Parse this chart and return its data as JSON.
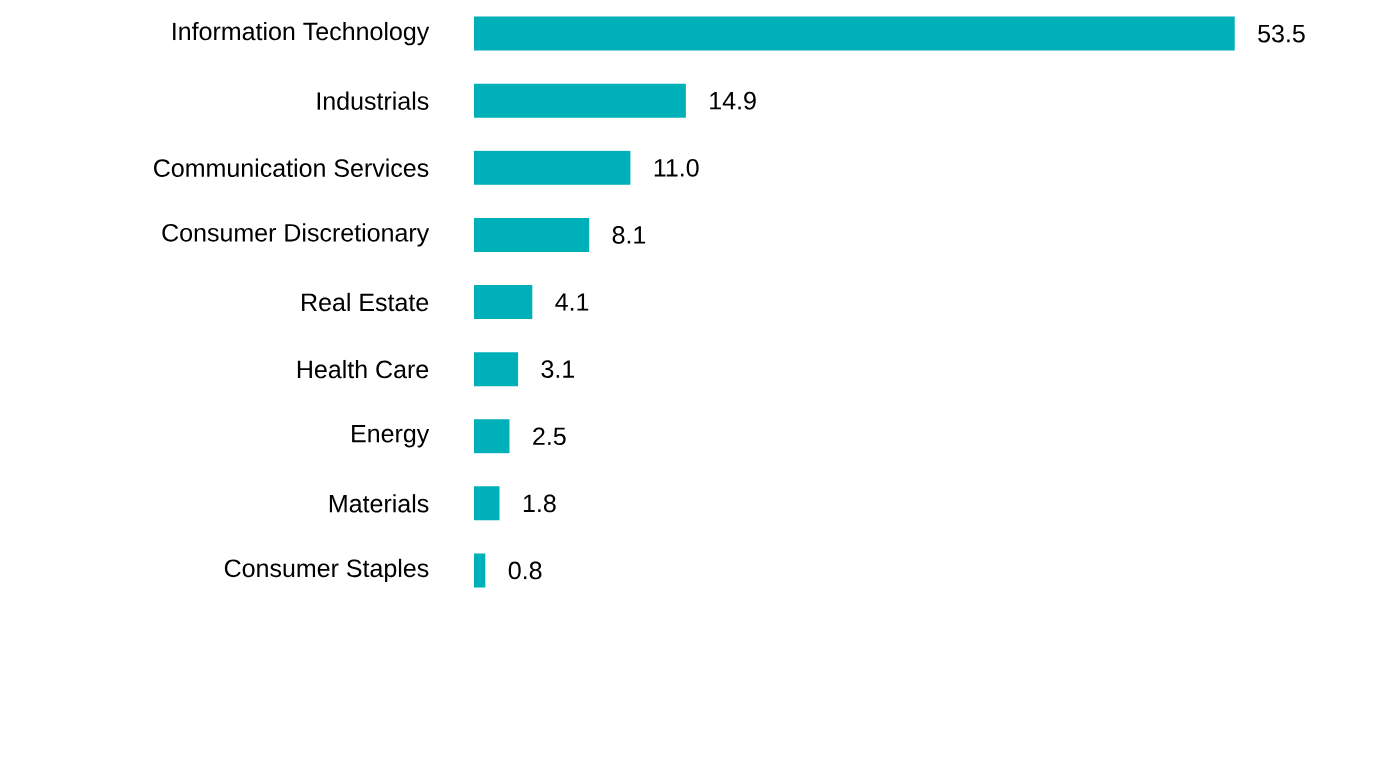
{
  "chart_data": {
    "type": "bar",
    "orientation": "horizontal",
    "categories": [
      "Information Technology",
      "Industrials",
      "Communication Services",
      "Consumer Discretionary",
      "Real Estate",
      "Health Care",
      "Energy",
      "Materials",
      "Consumer Staples"
    ],
    "values": [
      53.5,
      14.9,
      11.0,
      8.1,
      4.1,
      3.1,
      2.5,
      1.8,
      0.8
    ],
    "value_labels": [
      "53.5",
      "14.9",
      "11.0",
      "8.1",
      "4.1",
      "3.1",
      "2.5",
      "1.8",
      "0.8"
    ],
    "color": "#00b0b9"
  }
}
